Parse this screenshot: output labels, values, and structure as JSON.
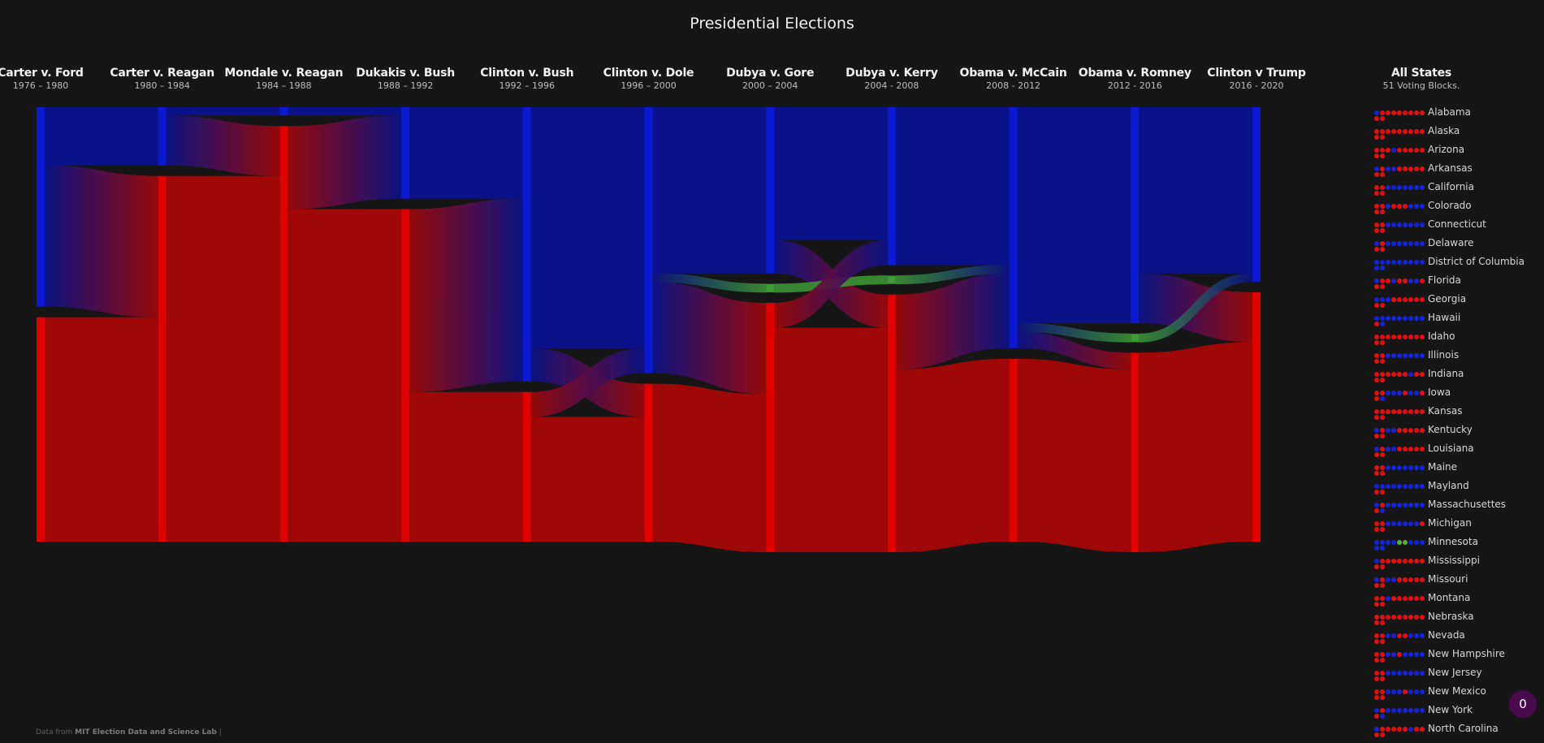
{
  "title": "Presidential Elections",
  "elections": [
    {
      "title": "Carter v. Ford",
      "years": "1976 – 1980"
    },
    {
      "title": "Carter v. Reagan",
      "years": "1980 – 1984"
    },
    {
      "title": "Mondale v. Reagan",
      "years": "1984 – 1988"
    },
    {
      "title": "Dukakis v. Bush",
      "years": "1988 – 1992"
    },
    {
      "title": "Clinton v. Bush",
      "years": "1992 – 1996"
    },
    {
      "title": "Clinton v. Dole",
      "years": "1996 – 2000"
    },
    {
      "title": "Dubya v. Gore",
      "years": "2000 – 2004"
    },
    {
      "title": "Dubya v. Kerry",
      "years": "2004 - 2008"
    },
    {
      "title": "Obama v. McCain",
      "years": "2008 - 2012"
    },
    {
      "title": "Obama v. Romney",
      "years": "2012 - 2016"
    },
    {
      "title": "Clinton v Trump",
      "years": "2016 - 2020"
    }
  ],
  "states_panel": {
    "title": "All States",
    "subtitle": "51 Voting Blocks."
  },
  "source": {
    "prefix": "Data from",
    "name": "MIT Election Data and Science Lab",
    "sep": "|"
  },
  "badge": "0",
  "colors": {
    "dem": "#0a128a",
    "rep": "#a00808",
    "dem_bar": "#0b1ad2",
    "rep_bar": "#e00000",
    "tie": "#3d9a34",
    "background": "#161616"
  },
  "chart_data": {
    "type": "sankey",
    "title": "Presidential Elections",
    "unit": "states",
    "columns": [
      "1976",
      "1980",
      "1984",
      "1988",
      "1992",
      "1996",
      "2000",
      "2004",
      "2008",
      "2012",
      "2016"
    ],
    "nodes": [
      {
        "dem": 24,
        "tie": 0,
        "rep": 27
      },
      {
        "dem": 7,
        "tie": 0,
        "rep": 44
      },
      {
        "dem": 1,
        "tie": 0,
        "rep": 50
      },
      {
        "dem": 11,
        "tie": 0,
        "rep": 40
      },
      {
        "dem": 33,
        "tie": 0,
        "rep": 18
      },
      {
        "dem": 32,
        "tie": 0,
        "rep": 19
      },
      {
        "dem": 20,
        "tie": 1,
        "rep": 30
      },
      {
        "dem": 19,
        "tie": 1,
        "rep": 31
      },
      {
        "dem": 29,
        "tie": 0,
        "rep": 22
      },
      {
        "dem": 26,
        "tie": 1,
        "rep": 24
      },
      {
        "dem": 21,
        "tie": 0,
        "rep": 30
      }
    ],
    "flows": [
      [
        {
          "from": "dem",
          "to": "dem",
          "value": 7
        },
        {
          "from": "dem",
          "to": "rep",
          "value": 17
        },
        {
          "from": "rep",
          "to": "rep",
          "value": 27
        }
      ],
      [
        {
          "from": "dem",
          "to": "dem",
          "value": 1
        },
        {
          "from": "dem",
          "to": "rep",
          "value": 6
        },
        {
          "from": "rep",
          "to": "rep",
          "value": 44
        }
      ],
      [
        {
          "from": "dem",
          "to": "dem",
          "value": 1
        },
        {
          "from": "rep",
          "to": "dem",
          "value": 10
        },
        {
          "from": "rep",
          "to": "rep",
          "value": 40
        }
      ],
      [
        {
          "from": "dem",
          "to": "dem",
          "value": 11
        },
        {
          "from": "rep",
          "to": "dem",
          "value": 22
        },
        {
          "from": "rep",
          "to": "rep",
          "value": 18
        }
      ],
      [
        {
          "from": "dem",
          "to": "dem",
          "value": 29
        },
        {
          "from": "dem",
          "to": "rep",
          "value": 4
        },
        {
          "from": "rep",
          "to": "dem",
          "value": 3
        },
        {
          "from": "rep",
          "to": "rep",
          "value": 15
        }
      ],
      [
        {
          "from": "dem",
          "to": "dem",
          "value": 20
        },
        {
          "from": "dem",
          "to": "tie",
          "value": 1
        },
        {
          "from": "dem",
          "to": "rep",
          "value": 11
        },
        {
          "from": "rep",
          "to": "rep",
          "value": 19
        }
      ],
      [
        {
          "from": "dem",
          "to": "dem",
          "value": 16
        },
        {
          "from": "dem",
          "to": "rep",
          "value": 4
        },
        {
          "from": "tie",
          "to": "tie",
          "value": 1
        },
        {
          "from": "rep",
          "to": "dem",
          "value": 3
        },
        {
          "from": "rep",
          "to": "rep",
          "value": 27
        }
      ],
      [
        {
          "from": "dem",
          "to": "dem",
          "value": 19
        },
        {
          "from": "tie",
          "to": "dem",
          "value": 1
        },
        {
          "from": "rep",
          "to": "dem",
          "value": 9
        },
        {
          "from": "rep",
          "to": "rep",
          "value": 22
        }
      ],
      [
        {
          "from": "dem",
          "to": "dem",
          "value": 26
        },
        {
          "from": "dem",
          "to": "tie",
          "value": 1
        },
        {
          "from": "dem",
          "to": "rep",
          "value": 2
        },
        {
          "from": "rep",
          "to": "rep",
          "value": 22
        }
      ],
      [
        {
          "from": "dem",
          "to": "dem",
          "value": 20
        },
        {
          "from": "dem",
          "to": "rep",
          "value": 6
        },
        {
          "from": "tie",
          "to": "dem",
          "value": 1
        },
        {
          "from": "rep",
          "to": "rep",
          "value": 24
        }
      ]
    ]
  },
  "states": [
    {
      "name": "Alabama",
      "history": "DRRRRRRRRRR"
    },
    {
      "name": "Alaska",
      "history": "RRRRRRRRRRR"
    },
    {
      "name": "Arizona",
      "history": "RRRRRDRRRRR"
    },
    {
      "name": "Arkansas",
      "history": "DRRRDDRRRRR"
    },
    {
      "name": "California",
      "history": "RRRRDDDDDDD"
    },
    {
      "name": "Colorado",
      "history": "RRRRDRRRDDD"
    },
    {
      "name": "Connecticut",
      "history": "RRRRDDDDDDD"
    },
    {
      "name": "Delaware",
      "history": "DRRRDDDDDDD"
    },
    {
      "name": "District of Columbia",
      "history": "DDDDDDDDDDD"
    },
    {
      "name": "Florida",
      "history": "DRRRRDRRDDR"
    },
    {
      "name": "Georgia",
      "history": "DDRRDRRRRRR"
    },
    {
      "name": "Hawaii",
      "history": "DDRDDDDDDDD"
    },
    {
      "name": "Idaho",
      "history": "RRRRRRRRRRR"
    },
    {
      "name": "Illinois",
      "history": "RRRRDDDDDDD"
    },
    {
      "name": "Indiana",
      "history": "RRRRRRRRDRR"
    },
    {
      "name": "Iowa",
      "history": "RRRDDDDRDDR"
    },
    {
      "name": "Kansas",
      "history": "RRRRRRRRRRR"
    },
    {
      "name": "Kentucky",
      "history": "DRRRDDRRRRR"
    },
    {
      "name": "Louisiana",
      "history": "DRRRDDRRRRR"
    },
    {
      "name": "Maine",
      "history": "RRRRDDDDDDD"
    },
    {
      "name": "Mayland",
      "history": "DDRRDDDDDDD"
    },
    {
      "name": "Massachusettes",
      "history": "DRRDDDDDDDD"
    },
    {
      "name": "Michigan",
      "history": "RRRRDDDDDDR"
    },
    {
      "name": "Minnesota",
      "history": "DDDDDDTTDDD"
    },
    {
      "name": "Mississippi",
      "history": "DRRRRRRRRRR"
    },
    {
      "name": "Missouri",
      "history": "DRRRDDRRRRR"
    },
    {
      "name": "Montana",
      "history": "RRRRDRRRRRR"
    },
    {
      "name": "Nebraska",
      "history": "RRRRRRRRRRR"
    },
    {
      "name": "Nevada",
      "history": "RRRRDDRRDDD"
    },
    {
      "name": "New Hampshire",
      "history": "RRRRDDRDDDD"
    },
    {
      "name": "New Jersey",
      "history": "RRRRDDDDDDD"
    },
    {
      "name": "New Mexico",
      "history": "RRRRDDDRDDD"
    },
    {
      "name": "New York",
      "history": "DRRDDDDDDDD"
    },
    {
      "name": "North Carolina",
      "history": "DRRRRRRRDRR"
    }
  ]
}
